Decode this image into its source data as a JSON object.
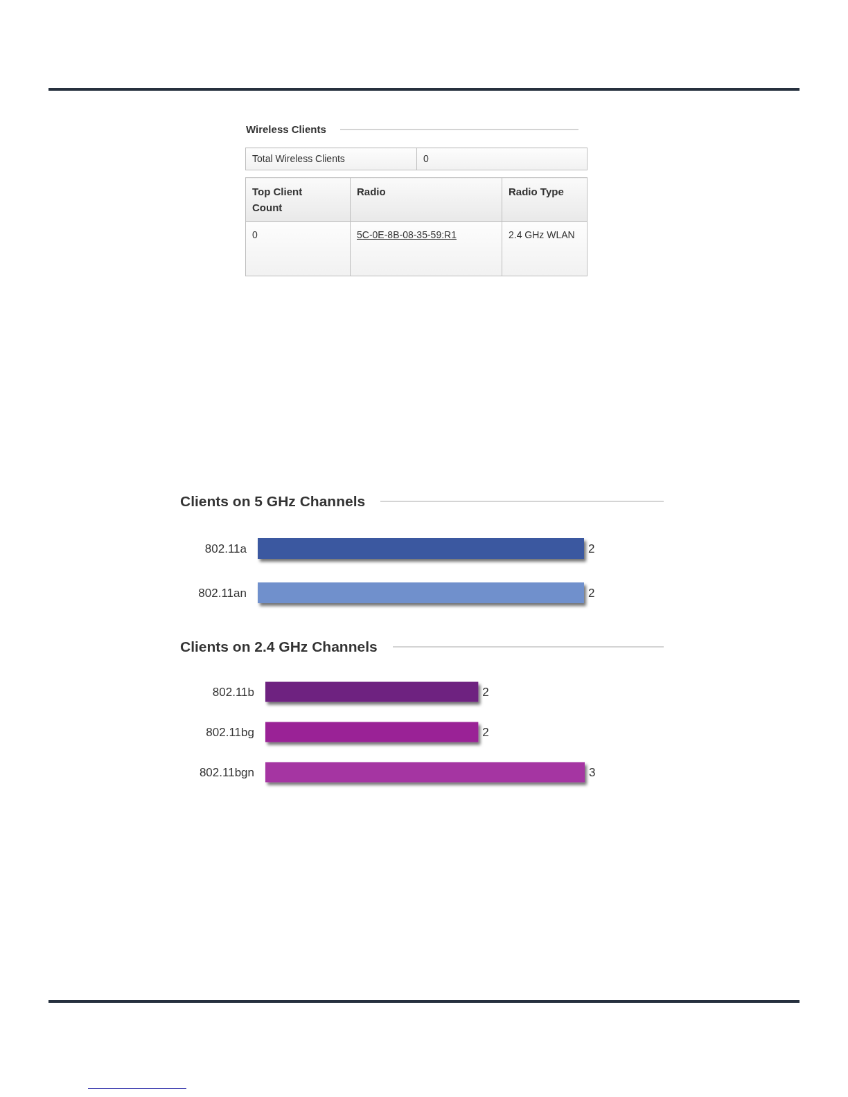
{
  "chart_data": [
    {
      "type": "other",
      "title": "Wireless Clients",
      "annotations": [
        "Total Wireless Clients",
        "0",
        "Top Client Count",
        "Radio",
        "Radio Type",
        "0",
        "5C-0E-8B-08-35-59:R1",
        "2.4 GHz WLAN"
      ]
    },
    {
      "type": "bar",
      "orientation": "horizontal",
      "title": "Clients on 5 GHz Channels",
      "categories": [
        "802.11a",
        "802.11an"
      ],
      "values": [
        2,
        2
      ],
      "colors": [
        "#3a58a0",
        "#7090cc"
      ],
      "data_labels": true
    },
    {
      "type": "bar",
      "orientation": "horizontal",
      "title": "Clients on 2.4 GHz Channels",
      "categories": [
        "802.11b",
        "802.11bg",
        "802.11bgn"
      ],
      "values": [
        2,
        2,
        3
      ],
      "colors": [
        "#6e2080",
        "#9a2496",
        "#a535a2"
      ],
      "data_labels": true
    }
  ]
}
